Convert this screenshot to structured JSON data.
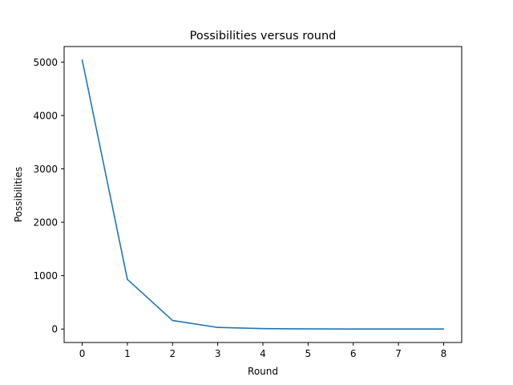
{
  "chart_data": {
    "type": "line",
    "title": "Possibilities versus round",
    "xlabel": "Round",
    "ylabel": "Possibilities",
    "x": [
      0,
      1,
      2,
      3,
      4,
      5,
      6,
      7,
      8
    ],
    "series": [
      {
        "values": [
          5040,
          930,
          160,
          30,
          8,
          3,
          1,
          1,
          1
        ],
        "color": "#1f77b4"
      }
    ],
    "xlim": [
      -0.4,
      8.4
    ],
    "ylim": [
      -252,
      5292
    ],
    "xticks": [
      0,
      1,
      2,
      3,
      4,
      5,
      6,
      7,
      8
    ],
    "yticks": [
      0,
      1000,
      2000,
      3000,
      4000,
      5000
    ],
    "grid": false,
    "legend": "none"
  }
}
